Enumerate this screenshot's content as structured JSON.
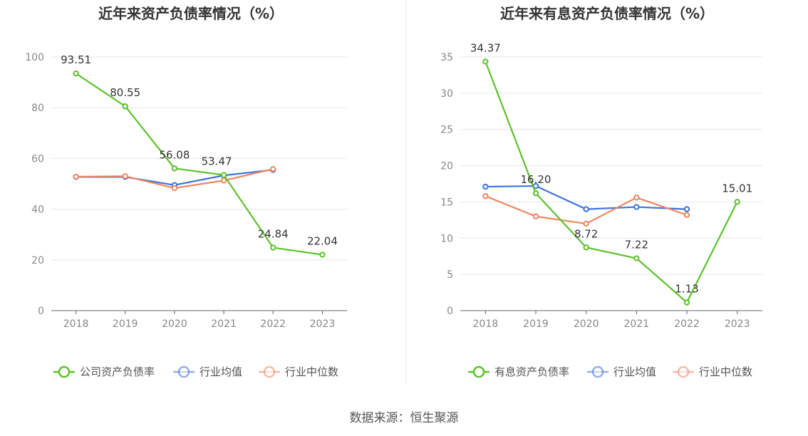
{
  "colors": {
    "company": "#5cc22a",
    "industry_avg": "#3d74d9",
    "industry_median": "#ee8660",
    "grid": "#e3e6ee",
    "axis": "#666666",
    "divider": "#e6e6e6"
  },
  "source_text": "数据来源：恒生聚源",
  "chart_data": [
    {
      "type": "line",
      "title": "近年来资产负债率情况（%）",
      "categories": [
        "2018",
        "2019",
        "2020",
        "2021",
        "2022",
        "2023"
      ],
      "ylim": [
        0,
        100
      ],
      "yticks": [
        0,
        20,
        40,
        60,
        80,
        100
      ],
      "grid": true,
      "legend_position": "bottom",
      "series": [
        {
          "name": "公司资产负债率",
          "key": "company",
          "values": [
            93.51,
            80.55,
            56.08,
            53.47,
            24.84,
            22.04
          ],
          "labels": [
            "93.51",
            "80.55",
            "56.08",
            "53.47",
            "24.84",
            "22.04"
          ]
        },
        {
          "name": "行业均值",
          "key": "industry_avg",
          "values": [
            52.7,
            52.7,
            49.5,
            53.3,
            55.5,
            null
          ]
        },
        {
          "name": "行业中位数",
          "key": "industry_median",
          "values": [
            52.8,
            53.0,
            48.3,
            51.3,
            55.8,
            null
          ]
        }
      ]
    },
    {
      "type": "line",
      "title": "近年来有息资产负债率情况（%）",
      "categories": [
        "2018",
        "2019",
        "2020",
        "2021",
        "2022",
        "2023"
      ],
      "ylim": [
        0,
        35
      ],
      "yticks": [
        0,
        5,
        10,
        15,
        20,
        25,
        30,
        35
      ],
      "grid": true,
      "legend_position": "bottom",
      "series": [
        {
          "name": "有息资产负债率",
          "key": "company",
          "values": [
            34.37,
            16.2,
            8.72,
            7.22,
            1.13,
            15.01
          ],
          "labels": [
            "34.37",
            "16.20",
            "8.72",
            "7.22",
            "1.13",
            "15.01"
          ]
        },
        {
          "name": "行业均值",
          "key": "industry_avg",
          "values": [
            17.1,
            17.2,
            14.0,
            14.3,
            14.0,
            null
          ]
        },
        {
          "name": "行业中位数",
          "key": "industry_median",
          "values": [
            15.8,
            13.0,
            12.0,
            15.6,
            13.2,
            null
          ]
        }
      ]
    }
  ]
}
